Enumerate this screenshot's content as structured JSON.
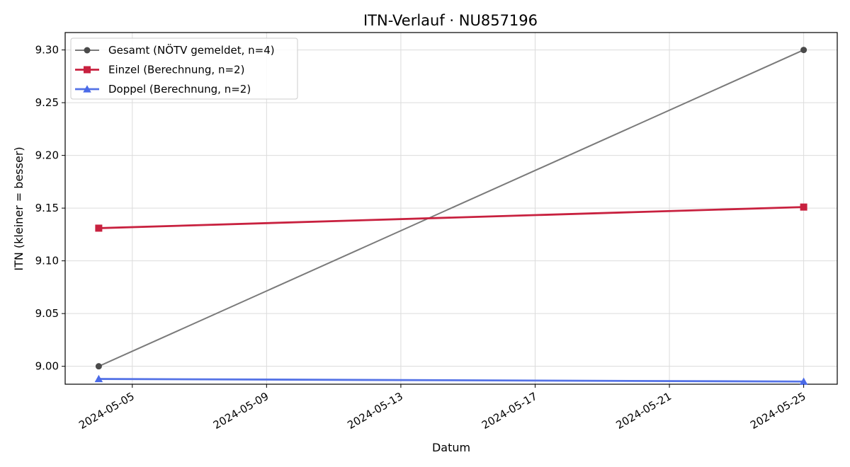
{
  "chart_data": {
    "type": "line",
    "title": "ITN-Verlauf · NU857196",
    "xlabel": "Datum",
    "ylabel": "ITN  (kleiner = besser)",
    "xlim": [
      "2024-05-03",
      "2024-05-26"
    ],
    "ylim": [
      8.983,
      9.3165
    ],
    "grid": true,
    "legend": "top-left",
    "xticks": [
      "2024-05-05",
      "2024-05-09",
      "2024-05-13",
      "2024-05-17",
      "2024-05-21",
      "2024-05-25"
    ],
    "yticks": [
      "9.00",
      "9.05",
      "9.10",
      "9.15",
      "9.20",
      "9.25",
      "9.30"
    ],
    "series": [
      {
        "name": "Gesamt (NÖTV gemeldet, n=4)",
        "color": "#7a7a7a",
        "marker_color": "#4a4a4a",
        "marker": "circle",
        "x": [
          "2024-05-04",
          "2024-05-25"
        ],
        "y": [
          9.0,
          9.3
        ]
      },
      {
        "name": "Einzel (Berechnung, n=2)",
        "color": "#c8213f",
        "marker_color": "#c8213f",
        "marker": "square",
        "x": [
          "2024-05-04",
          "2024-05-25"
        ],
        "y": [
          9.131,
          9.151
        ]
      },
      {
        "name": "Doppel (Berechnung, n=2)",
        "color": "#5573e6",
        "marker_color": "#4a6ae8",
        "marker": "triangle",
        "x": [
          "2024-05-04",
          "2024-05-25"
        ],
        "y": [
          8.988,
          8.9855
        ]
      }
    ]
  }
}
